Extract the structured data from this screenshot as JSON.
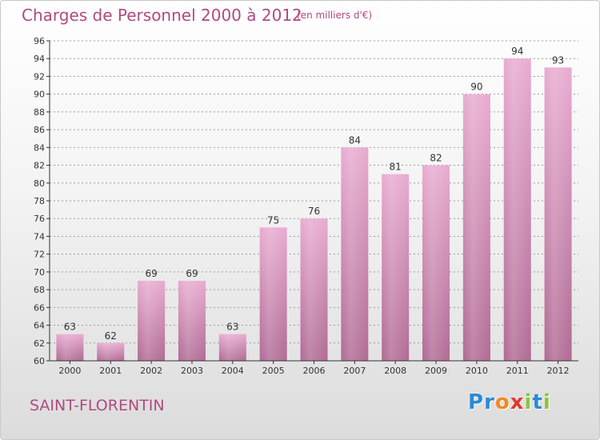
{
  "chart_data": {
    "type": "bar",
    "title": "Charges de Personnel 2000 à 2012",
    "subtitle": "(en milliers d'€)",
    "categories": [
      "2000",
      "2001",
      "2002",
      "2003",
      "2004",
      "2005",
      "2006",
      "2007",
      "2008",
      "2009",
      "2010",
      "2011",
      "2012"
    ],
    "values": [
      63,
      62,
      69,
      69,
      63,
      75,
      76,
      84,
      81,
      82,
      90,
      94,
      93
    ],
    "ylim": [
      60,
      96
    ],
    "yticks": [
      60,
      62,
      64,
      66,
      68,
      70,
      72,
      74,
      76,
      78,
      80,
      82,
      84,
      86,
      88,
      90,
      92,
      94,
      96
    ],
    "grid": true,
    "xlabel": "",
    "ylabel": ""
  },
  "footer": {
    "city": "SAINT-FLORENTIN",
    "logo_letters": [
      "P",
      "r",
      "o",
      "x",
      "i",
      "t",
      "i"
    ]
  },
  "colors": {
    "title": "#b04a82",
    "bar_top": "#e8abd0",
    "bar_bottom": "#b06a94",
    "axis": "#333333",
    "logo": [
      "#2a8ad4",
      "#2a8ad4",
      "#f08a1c",
      "#e03a2c",
      "#8cc43c",
      "#2a8ad4",
      "#8cc43c"
    ]
  }
}
